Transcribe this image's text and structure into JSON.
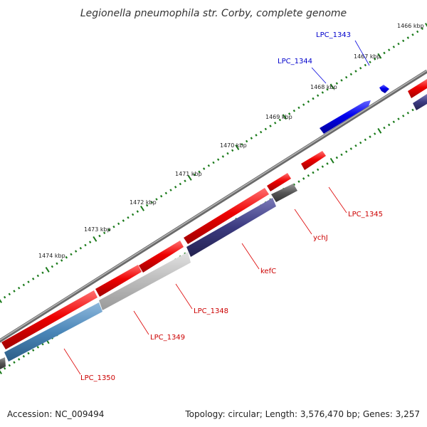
{
  "title": "Legionella pneumophila str. Corby, complete genome",
  "footer": {
    "accession": "Accession: NC_009494",
    "summary": "Topology: circular; Length: 3,576,470 bp; Genes: 3,257"
  },
  "ticks": [
    {
      "label": "1466 kbp"
    },
    {
      "label": "1467 kbp"
    },
    {
      "label": "1468 kbp"
    },
    {
      "label": "1469 kbp"
    },
    {
      "label": "1470 kbp"
    },
    {
      "label": "1471 kbp"
    },
    {
      "label": "1472 kbp"
    },
    {
      "label": "1473 kbp"
    },
    {
      "label": "1474 kbp"
    }
  ],
  "genes": [
    {
      "label": "LPC_1343",
      "strand": "forward",
      "color": "#0000ee"
    },
    {
      "label": "LPC_1344",
      "strand": "forward",
      "color": "#0000ee"
    },
    {
      "label": "LPC_1345",
      "strand": "reverse",
      "color": "#ee0000"
    },
    {
      "label": "ychJ",
      "strand": "reverse",
      "color": "#ee0000"
    },
    {
      "label": "kefC",
      "strand": "reverse",
      "color": "#ee0000"
    },
    {
      "label": "LPC_1348",
      "strand": "reverse",
      "color": "#ee0000"
    },
    {
      "label": "LPC_1349",
      "strand": "reverse",
      "color": "#ee0000"
    },
    {
      "label": "LPC_1350",
      "strand": "reverse",
      "color": "#ee0000"
    }
  ],
  "colors": {
    "backbone": "#888888",
    "tick": "#1a7a1a",
    "forward_gene": "#0000ee",
    "reverse_gene": "#ee0000",
    "cog_gray": "#555555",
    "cog_navy": "#3b3a80",
    "cog_light": "#bbbbbb",
    "cog_blue": "#4a86b8"
  }
}
